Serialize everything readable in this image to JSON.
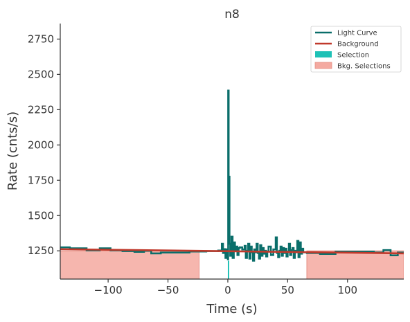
{
  "chart_data": {
    "type": "line",
    "title": "n8",
    "xlabel": "Time (s)",
    "ylabel": "Rate (cnts/s)",
    "xlim": [
      -140,
      147
    ],
    "ylim": [
      1050,
      2860
    ],
    "x_ticks": [
      -100,
      -50,
      0,
      50,
      100
    ],
    "x_tick_labels": [
      "−100",
      "−50",
      "0",
      "50",
      "100"
    ],
    "y_ticks": [
      1250,
      1500,
      1750,
      2000,
      2250,
      2500,
      2750
    ],
    "y_tick_labels": [
      "1250",
      "1500",
      "1750",
      "2000",
      "2250",
      "2500",
      "2750"
    ],
    "grid": false,
    "legend": {
      "position": "top-right",
      "entries": [
        {
          "label": "Light Curve",
          "kind": "line",
          "color": "#0a6e6a"
        },
        {
          "label": "Background",
          "kind": "line",
          "color": "#c0392b"
        },
        {
          "label": "Selection",
          "kind": "patch",
          "color": "#1fc1b6"
        },
        {
          "label": "Bkg. Selections",
          "kind": "patch",
          "color": "#f4a9a0"
        }
      ]
    },
    "series": [
      {
        "name": "Light Curve",
        "color": "#0a6e6a",
        "step": [
          [
            -140,
            1275
          ],
          [
            -132,
            1268
          ],
          [
            -118,
            1253
          ],
          [
            -107,
            1268
          ],
          [
            -98,
            1253
          ],
          [
            -88,
            1248
          ],
          [
            -78,
            1243
          ],
          [
            -70,
            1250
          ],
          [
            -64,
            1232
          ],
          [
            -56,
            1238
          ],
          [
            -32,
            1245
          ],
          [
            -18,
            1248
          ],
          [
            -8,
            1252
          ],
          [
            -5,
            1300
          ],
          [
            -4,
            1235
          ],
          [
            -3,
            1262
          ],
          [
            -2,
            1200
          ],
          [
            -1,
            1260
          ],
          [
            0,
            1190
          ],
          [
            0.3,
            2385
          ],
          [
            0.7,
            1600
          ],
          [
            1,
            1775
          ],
          [
            1.4,
            1300
          ],
          [
            2,
            1215
          ],
          [
            3,
            1350
          ],
          [
            4,
            1200
          ],
          [
            5,
            1310
          ],
          [
            6,
            1250
          ],
          [
            7,
            1280
          ],
          [
            8,
            1220
          ],
          [
            9,
            1270
          ],
          [
            10,
            1275
          ],
          [
            12,
            1260
          ],
          [
            14,
            1285
          ],
          [
            15,
            1200
          ],
          [
            16,
            1250
          ],
          [
            17,
            1300
          ],
          [
            18,
            1195
          ],
          [
            19,
            1280
          ],
          [
            20,
            1240
          ],
          [
            21,
            1180
          ],
          [
            22,
            1260
          ],
          [
            23,
            1240
          ],
          [
            24,
            1300
          ],
          [
            25,
            1235
          ],
          [
            26,
            1195
          ],
          [
            27,
            1290
          ],
          [
            28,
            1215
          ],
          [
            29,
            1270
          ],
          [
            30,
            1230
          ],
          [
            31,
            1250
          ],
          [
            32,
            1210
          ],
          [
            33,
            1245
          ],
          [
            34,
            1280
          ],
          [
            36,
            1220
          ],
          [
            38,
            1260
          ],
          [
            40,
            1345
          ],
          [
            41,
            1235
          ],
          [
            42,
            1205
          ],
          [
            43,
            1250
          ],
          [
            44,
            1280
          ],
          [
            45,
            1215
          ],
          [
            46,
            1270
          ],
          [
            47,
            1235
          ],
          [
            48,
            1265
          ],
          [
            49,
            1210
          ],
          [
            50,
            1245
          ],
          [
            51,
            1300
          ],
          [
            52,
            1220
          ],
          [
            53,
            1255
          ],
          [
            54,
            1270
          ],
          [
            55,
            1200
          ],
          [
            56,
            1250
          ],
          [
            57,
            1240
          ],
          [
            58,
            1320
          ],
          [
            59,
            1205
          ],
          [
            60,
            1310
          ],
          [
            61,
            1230
          ],
          [
            62,
            1265
          ],
          [
            63,
            1240
          ],
          [
            66,
            1235
          ],
          [
            77,
            1228
          ],
          [
            90,
            1245
          ],
          [
            115,
            1245
          ],
          [
            122,
            1238
          ],
          [
            130,
            1255
          ],
          [
            136,
            1218
          ],
          [
            142,
            1238
          ],
          [
            147,
            1238
          ]
        ]
      },
      {
        "name": "Background",
        "color": "#c0392b",
        "points": [
          [
            -140,
            1262
          ],
          [
            147,
            1232
          ]
        ]
      }
    ],
    "selection": {
      "x": [
        0,
        1
      ],
      "color": "#1fc1b6"
    },
    "bkg_selections": {
      "ranges": [
        [
          -140,
          -24
        ],
        [
          66,
          147
        ]
      ],
      "upper": 1250,
      "color": "#f4a9a0"
    }
  }
}
